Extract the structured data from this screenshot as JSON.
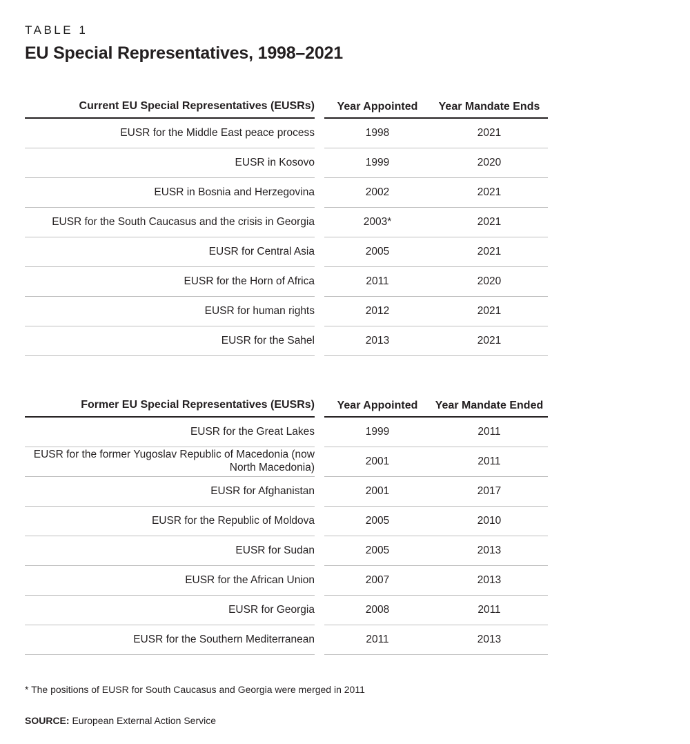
{
  "page": {
    "kicker": "TABLE 1",
    "title": "EU Special Representatives, 1998–2021",
    "footnote": "* The positions of EUSR for South Caucasus and Georgia were merged in 2011",
    "source_label": "SOURCE:",
    "source_text": "European External Action Service"
  },
  "colors": {
    "text": "#231f20",
    "header_rule": "#231f20",
    "row_rule": "#bdbdbd"
  },
  "tables": [
    {
      "name_header": "Current EU Special Representatives (EUSRs)",
      "year_appointed_header": "Year Appointed",
      "year_end_header": "Year Mandate Ends",
      "rows": [
        {
          "name": "EUSR for the Middle East peace process",
          "appointed": "1998",
          "ends": "2021"
        },
        {
          "name": "EUSR in Kosovo",
          "appointed": "1999",
          "ends": "2020"
        },
        {
          "name": "EUSR in Bosnia and Herzegovina",
          "appointed": "2002",
          "ends": "2021"
        },
        {
          "name": "EUSR for the South Caucasus and the crisis in Georgia",
          "appointed": "2003*",
          "ends": "2021"
        },
        {
          "name": "EUSR for Central Asia",
          "appointed": "2005",
          "ends": "2021"
        },
        {
          "name": "EUSR for the Horn of Africa",
          "appointed": "2011",
          "ends": "2020"
        },
        {
          "name": "EUSR for human rights",
          "appointed": "2012",
          "ends": "2021"
        },
        {
          "name": "EUSR for the Sahel",
          "appointed": "2013",
          "ends": "2021"
        }
      ]
    },
    {
      "name_header": "Former EU Special Representatives (EUSRs)",
      "year_appointed_header": "Year Appointed",
      "year_end_header": "Year Mandate Ended",
      "rows": [
        {
          "name": "EUSR for the Great Lakes",
          "appointed": "1999",
          "ends": "2011"
        },
        {
          "name": "EUSR for the former Yugoslav Republic of Macedonia (now North Macedonia)",
          "appointed": "2001",
          "ends": "2011"
        },
        {
          "name": "EUSR for Afghanistan",
          "appointed": "2001",
          "ends": "2017"
        },
        {
          "name": "EUSR for the Republic of Moldova",
          "appointed": "2005",
          "ends": "2010"
        },
        {
          "name": "EUSR for Sudan",
          "appointed": "2005",
          "ends": "2013"
        },
        {
          "name": "EUSR for the African Union",
          "appointed": "2007",
          "ends": "2013"
        },
        {
          "name": "EUSR for Georgia",
          "appointed": "2008",
          "ends": "2011"
        },
        {
          "name": "EUSR for the Southern Mediterranean",
          "appointed": "2011",
          "ends": "2013"
        }
      ]
    }
  ]
}
